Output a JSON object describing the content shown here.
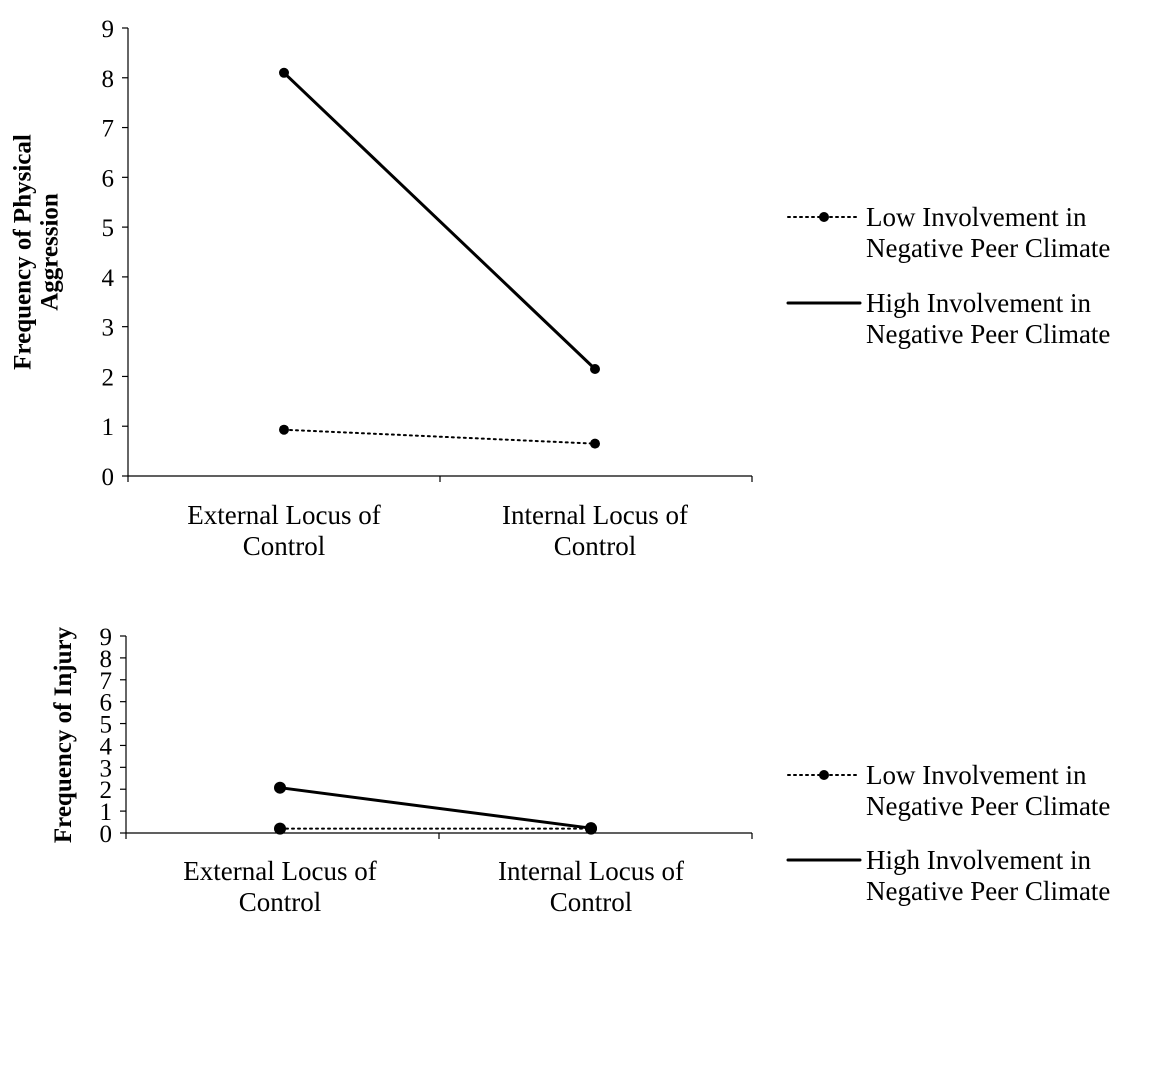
{
  "chart_data": [
    {
      "type": "line",
      "title": "",
      "xlabel": "",
      "ylabel": [
        "Frequency of Physical",
        "Aggression"
      ],
      "ylim": [
        0,
        9
      ],
      "yticks": [
        "0",
        "1",
        "2",
        "3",
        "4",
        "5",
        "6",
        "7",
        "8",
        "9"
      ],
      "categories": [
        [
          "External Locus of",
          "Control"
        ],
        [
          "Internal Locus of",
          "Control"
        ]
      ],
      "grid": false,
      "legend_position": "right",
      "series": [
        {
          "name": [
            "Low Involvement in",
            "Negative Peer Climate"
          ],
          "style": "dotted",
          "values": [
            0.93,
            0.65
          ]
        },
        {
          "name": [
            "High Involvement in",
            "Negative Peer Climate"
          ],
          "style": "solid",
          "values": [
            8.1,
            2.15
          ]
        }
      ]
    },
    {
      "type": "line",
      "title": "",
      "xlabel": "",
      "ylabel": [
        "Frequency of Injury"
      ],
      "ylim": [
        0,
        9
      ],
      "yticks": [
        "0",
        "1",
        "2",
        "3",
        "4",
        "5",
        "6",
        "7",
        "8",
        "9"
      ],
      "categories": [
        [
          "External Locus of",
          "Control"
        ],
        [
          "Internal Locus of",
          "Control"
        ]
      ],
      "grid": false,
      "legend_position": "right",
      "series": [
        {
          "name": [
            "Low Involvement in",
            "Negative Peer Climate"
          ],
          "style": "dotted",
          "values": [
            0.2,
            0.2
          ]
        },
        {
          "name": [
            "High Involvement in",
            "Negative Peer Climate"
          ],
          "style": "solid",
          "values": [
            2.07,
            0.22
          ]
        }
      ]
    }
  ]
}
